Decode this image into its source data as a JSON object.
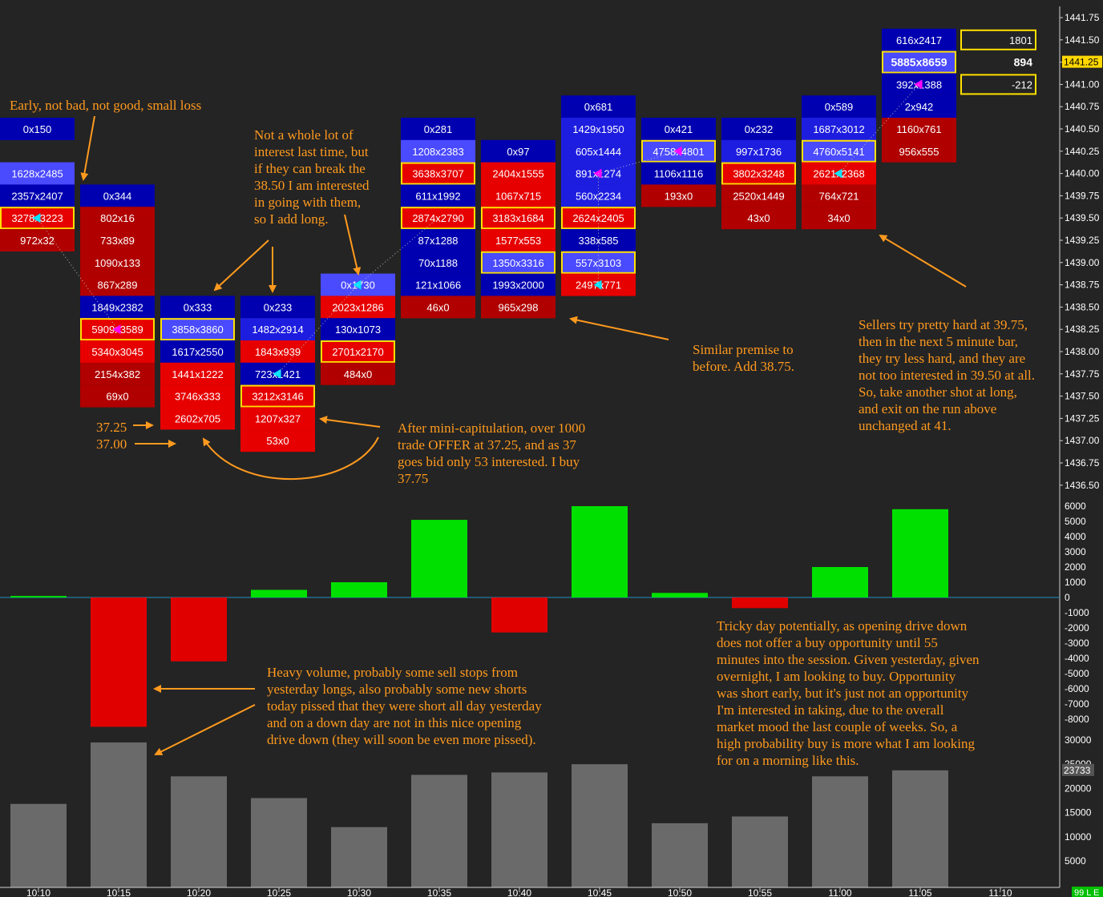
{
  "chart_data": [
    {
      "type": "footprint",
      "colors": {
        "bid_dark": "#0000b0",
        "bid_mid": "#1d1de0",
        "bid_light": "#4a4aff",
        "ask_dark": "#b00000",
        "ask_mid": "#e60000",
        "ask_light": "#ff2020",
        "highlight": "#ffe000",
        "arrow_cyan": "#00e5ff",
        "arrow_magenta": "#ff00ff",
        "background": "#242424"
      },
      "price_ticks": [
        "1441.75",
        "1441.50",
        "1441.25",
        "1441.00",
        "1440.75",
        "1440.50",
        "1440.25",
        "1440.00",
        "1439.75",
        "1439.50",
        "1439.25",
        "1439.00",
        "1438.75",
        "1438.50",
        "1438.25",
        "1438.00",
        "1437.75",
        "1437.50",
        "1437.25",
        "1437.00",
        "1436.75",
        "1436.50"
      ],
      "current_price": "1441.25",
      "bars": [
        {
          "time": "10:10",
          "cells": [
            {
              "price": 1440.5,
              "text": "0x150",
              "color": "bid_dark"
            },
            {
              "price": 1440.0,
              "text": "1628x2485",
              "color": "bid_light"
            },
            {
              "price": 1439.75,
              "text": "2357x2407",
              "color": "bid_dark"
            },
            {
              "price": 1439.5,
              "text": "3278x3223",
              "color": "ask_mid",
              "highlight": true,
              "arrow": "cyan"
            },
            {
              "price": 1439.25,
              "text": "972x32",
              "color": "ask_dark"
            }
          ]
        },
        {
          "time": "10:15",
          "cells": [
            {
              "price": 1439.75,
              "text": "0x344",
              "color": "bid_dark"
            },
            {
              "price": 1439.5,
              "text": "802x16",
              "color": "ask_dark"
            },
            {
              "price": 1439.25,
              "text": "733x89",
              "color": "ask_dark"
            },
            {
              "price": 1439.0,
              "text": "1090x133",
              "color": "ask_dark"
            },
            {
              "price": 1438.75,
              "text": "867x289",
              "color": "ask_dark"
            },
            {
              "price": 1438.5,
              "text": "1849x2382",
              "color": "bid_dark"
            },
            {
              "price": 1438.25,
              "text": "5909x3589",
              "color": "ask_mid",
              "highlight": true,
              "arrow": "magenta"
            },
            {
              "price": 1438.0,
              "text": "5340x3045",
              "color": "ask_mid"
            },
            {
              "price": 1437.75,
              "text": "2154x382",
              "color": "ask_dark"
            },
            {
              "price": 1437.5,
              "text": "69x0",
              "color": "ask_dark"
            }
          ]
        },
        {
          "time": "10:20",
          "cells": [
            {
              "price": 1438.5,
              "text": "0x333",
              "color": "bid_dark"
            },
            {
              "price": 1438.25,
              "text": "3858x3860",
              "color": "bid_light",
              "highlight": true
            },
            {
              "price": 1438.0,
              "text": "1617x2550",
              "color": "bid_dark"
            },
            {
              "price": 1437.75,
              "text": "1441x1222",
              "color": "ask_mid"
            },
            {
              "price": 1437.5,
              "text": "3746x333",
              "color": "ask_mid"
            },
            {
              "price": 1437.25,
              "text": "2602x705",
              "color": "ask_mid"
            }
          ]
        },
        {
          "time": "10:25",
          "cells": [
            {
              "price": 1438.5,
              "text": "0x233",
              "color": "bid_dark"
            },
            {
              "price": 1438.25,
              "text": "1482x2914",
              "color": "bid_mid"
            },
            {
              "price": 1438.0,
              "text": "1843x939",
              "color": "ask_mid"
            },
            {
              "price": 1437.75,
              "text": "723x1421",
              "color": "bid_dark",
              "arrow": "cyan"
            },
            {
              "price": 1437.5,
              "text": "3212x3146",
              "color": "ask_mid",
              "highlight": true
            },
            {
              "price": 1437.25,
              "text": "1207x327",
              "color": "ask_mid"
            },
            {
              "price": 1437.0,
              "text": "53x0",
              "color": "ask_mid"
            }
          ]
        },
        {
          "time": "10:30",
          "cells": [
            {
              "price": 1438.75,
              "text": "0x1730",
              "color": "bid_light",
              "arrow": "cyan"
            },
            {
              "price": 1438.5,
              "text": "2023x1286",
              "color": "ask_mid"
            },
            {
              "price": 1438.25,
              "text": "130x1073",
              "color": "bid_dark"
            },
            {
              "price": 1438.0,
              "text": "2701x2170",
              "color": "ask_mid",
              "highlight": true
            },
            {
              "price": 1437.75,
              "text": "484x0",
              "color": "ask_dark"
            }
          ]
        },
        {
          "time": "10:35",
          "cells": [
            {
              "price": 1440.5,
              "text": "0x281",
              "color": "bid_dark"
            },
            {
              "price": 1440.25,
              "text": "1208x2383",
              "color": "bid_light"
            },
            {
              "price": 1440.0,
              "text": "3638x3707",
              "color": "ask_mid",
              "highlight": true
            },
            {
              "price": 1439.75,
              "text": "611x1992",
              "color": "bid_dark"
            },
            {
              "price": 1439.5,
              "text": "2874x2790",
              "color": "ask_mid",
              "highlight": true
            },
            {
              "price": 1439.25,
              "text": "87x1288",
              "color": "bid_dark"
            },
            {
              "price": 1439.0,
              "text": "70x1188",
              "color": "bid_dark"
            },
            {
              "price": 1438.75,
              "text": "121x1066",
              "color": "bid_dark"
            },
            {
              "price": 1438.5,
              "text": "46x0",
              "color": "ask_dark"
            }
          ]
        },
        {
          "time": "10:40",
          "cells": [
            {
              "price": 1440.25,
              "text": "0x97",
              "color": "bid_dark"
            },
            {
              "price": 1440.0,
              "text": "2404x1555",
              "color": "ask_mid"
            },
            {
              "price": 1439.75,
              "text": "1067x715",
              "color": "ask_mid"
            },
            {
              "price": 1439.5,
              "text": "3183x1684",
              "color": "ask_mid",
              "highlight": true
            },
            {
              "price": 1439.25,
              "text": "1577x553",
              "color": "ask_mid"
            },
            {
              "price": 1439.0,
              "text": "1350x3316",
              "color": "bid_light",
              "highlight": true
            },
            {
              "price": 1438.75,
              "text": "1993x2000",
              "color": "bid_dark"
            },
            {
              "price": 1438.5,
              "text": "965x298",
              "color": "ask_dark"
            }
          ]
        },
        {
          "time": "10:45",
          "cells": [
            {
              "price": 1440.75,
              "text": "0x681",
              "color": "bid_dark"
            },
            {
              "price": 1440.5,
              "text": "1429x1950",
              "color": "bid_mid"
            },
            {
              "price": 1440.25,
              "text": "605x1444",
              "color": "bid_mid"
            },
            {
              "price": 1440.0,
              "text": "891x1274",
              "color": "bid_mid",
              "arrow": "magenta"
            },
            {
              "price": 1439.75,
              "text": "560x2234",
              "color": "bid_mid"
            },
            {
              "price": 1439.5,
              "text": "2624x2405",
              "color": "ask_mid",
              "highlight": true
            },
            {
              "price": 1439.25,
              "text": "338x585",
              "color": "bid_dark"
            },
            {
              "price": 1439.0,
              "text": "557x3103",
              "color": "bid_light",
              "highlight": true
            },
            {
              "price": 1438.75,
              "text": "2497x771",
              "color": "ask_mid",
              "arrow": "cyan"
            }
          ]
        },
        {
          "time": "10:50",
          "cells": [
            {
              "price": 1440.5,
              "text": "0x421",
              "color": "bid_dark"
            },
            {
              "price": 1440.25,
              "text": "4758x4801",
              "color": "bid_light",
              "highlight": true,
              "arrow": "magenta"
            },
            {
              "price": 1440.0,
              "text": "1106x1116",
              "color": "bid_dark"
            },
            {
              "price": 1439.75,
              "text": "193x0",
              "color": "ask_dark"
            }
          ]
        },
        {
          "time": "10:55",
          "cells": [
            {
              "price": 1440.5,
              "text": "0x232",
              "color": "bid_dark"
            },
            {
              "price": 1440.25,
              "text": "997x1736",
              "color": "bid_mid"
            },
            {
              "price": 1440.0,
              "text": "3802x3248",
              "color": "ask_mid",
              "highlight": true
            },
            {
              "price": 1439.75,
              "text": "2520x1449",
              "color": "ask_dark"
            },
            {
              "price": 1439.5,
              "text": "43x0",
              "color": "ask_dark"
            }
          ]
        },
        {
          "time": "11:00",
          "cells": [
            {
              "price": 1440.75,
              "text": "0x589",
              "color": "bid_dark"
            },
            {
              "price": 1440.5,
              "text": "1687x3012",
              "color": "bid_mid"
            },
            {
              "price": 1440.25,
              "text": "4760x5141",
              "color": "bid_light",
              "highlight": true
            },
            {
              "price": 1440.0,
              "text": "2621x2368",
              "color": "ask_mid",
              "arrow": "cyan"
            },
            {
              "price": 1439.75,
              "text": "764x721",
              "color": "ask_dark"
            },
            {
              "price": 1439.5,
              "text": "34x0",
              "color": "ask_dark"
            }
          ]
        },
        {
          "time": "11:05",
          "cells": [
            {
              "price": 1441.5,
              "text": "616x2417",
              "color": "bid_dark"
            },
            {
              "price": 1441.25,
              "text": "5885x8659",
              "color": "bid_light",
              "highlight": true,
              "bold": true
            },
            {
              "price": 1441.0,
              "text": "392x1388",
              "color": "bid_dark",
              "arrow": "magenta"
            },
            {
              "price": 1440.75,
              "text": "2x942",
              "color": "bid_dark"
            },
            {
              "price": 1440.5,
              "text": "1160x761",
              "color": "ask_dark"
            },
            {
              "price": 1440.25,
              "text": "956x555",
              "color": "ask_dark"
            }
          ]
        }
      ],
      "side_panel": [
        {
          "price": 1441.5,
          "text": "1801",
          "boxed": true
        },
        {
          "price": 1441.25,
          "text": "894",
          "boxed": false,
          "bold": true
        },
        {
          "price": 1441.0,
          "text": "-212",
          "boxed": true
        }
      ]
    },
    {
      "type": "bar",
      "title": "delta",
      "categories": [
        "10:10",
        "10:15",
        "10:20",
        "10:25",
        "10:30",
        "10:35",
        "10:40",
        "10:45",
        "10:50",
        "10:55",
        "11:00",
        "11:05"
      ],
      "values": [
        100,
        -8500,
        -4200,
        500,
        1000,
        5100,
        -2300,
        6000,
        300,
        -700,
        2000,
        5800
      ],
      "ylim": [
        -8700,
        6300
      ],
      "ticks": [
        "6000",
        "5000",
        "4000",
        "3000",
        "2000",
        "1000",
        "0",
        "-1000",
        "-2000",
        "-3000",
        "-4000",
        "-5000",
        "-6000",
        "-7000",
        "-8000"
      ],
      "positive_color": "#00e000",
      "negative_color": "#e00000"
    },
    {
      "type": "bar",
      "title": "volume",
      "categories": [
        "10:10",
        "10:15",
        "10:20",
        "10:25",
        "10:30",
        "10:35",
        "10:40",
        "10:45",
        "10:50",
        "10:55",
        "11:00",
        "11:05"
      ],
      "values": [
        16800,
        29500,
        22500,
        18000,
        12000,
        22800,
        23300,
        25000,
        12800,
        14200,
        22500,
        23733
      ],
      "ylim": [
        3000,
        32000
      ],
      "ticks": [
        "30000",
        "25000",
        "20000",
        "15000",
        "10000",
        "5000"
      ],
      "last_value_label": "23733",
      "color": "#6a6a6a"
    }
  ],
  "time_labels": [
    "10:10",
    "10:15",
    "10:20",
    "10:25",
    "10:30",
    "10:35",
    "10:40",
    "10:45",
    "10:50",
    "10:55",
    "11:00",
    "11:05",
    "11:10"
  ],
  "status_label": "99 L E",
  "annotations": {
    "early": "Early, not bad, not good, small loss",
    "whole_lot": "Not a whole lot of\ninterest last time, but\nif they can break the\n38.50 I am interested\nin going with them,\nso I add long.",
    "similar": "Similar premise to\nbefore. Add 38.75.",
    "sellers": "Sellers try pretty hard at 39.75,\nthen in the next 5 minute bar,\nthey try less hard, and they are\nnot too interested in 39.50 at all.\nSo, take another shot at long,\nand exit on the run above\nunchanged at 41.",
    "mini_cap": "After mini-capitulation, over 1000\ntrade OFFER at 37.25, and as 37\ngoes bid only 53 interested. I buy\n37.75",
    "price_3725": "37.25",
    "price_3700": "37.00",
    "heavy": "Heavy volume, probably some sell stops from\nyesterday longs, also probably some new shorts\ntoday pissed that they were short all day yesterday\nand on a down day are not in this nice opening\ndrive down (they will soon be even more pissed).",
    "tricky": "Tricky day potentially, as opening drive down\ndoes not offer a buy opportunity until 55\nminutes into the session. Given yesterday, given\novernight, I am looking to buy. Opportunity\nwas short early, but it's just not an opportunity\nI'm interested in taking, due to the overall\nmarket mood the last couple of weeks. So, a\nhigh probability buy is more what I am looking\nfor on a morning like this."
  }
}
